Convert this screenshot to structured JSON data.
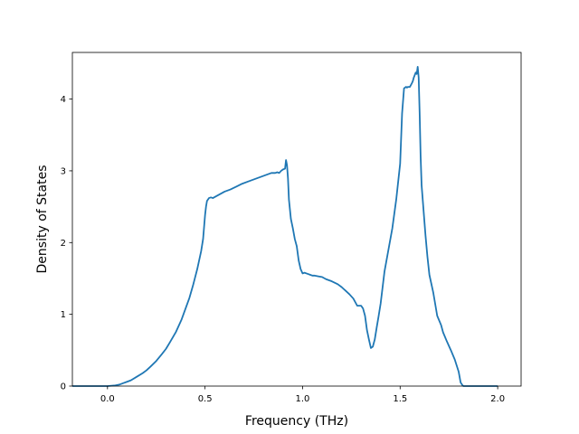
{
  "chart_data": {
    "type": "line",
    "title": "",
    "xlabel": "Frequency (THz)",
    "ylabel": "Density of States",
    "xlim": [
      -0.18,
      2.12
    ],
    "ylim": [
      0,
      4.65
    ],
    "xticks": [
      0.0,
      0.5,
      1.0,
      1.5,
      2.0
    ],
    "xtick_labels": [
      "0.0",
      "0.5",
      "1.0",
      "1.5",
      "2.0"
    ],
    "yticks": [
      0,
      1,
      2,
      3,
      4
    ],
    "ytick_labels": [
      "0",
      "1",
      "2",
      "3",
      "4"
    ],
    "grid": false,
    "legend": false,
    "series": [
      {
        "color": "#1f77b4",
        "x": [
          -0.18,
          0.0,
          0.04,
          0.06,
          0.08,
          0.1,
          0.12,
          0.15,
          0.18,
          0.2,
          0.22,
          0.25,
          0.28,
          0.3,
          0.32,
          0.35,
          0.38,
          0.4,
          0.42,
          0.44,
          0.46,
          0.48,
          0.49,
          0.5,
          0.505,
          0.51,
          0.52,
          0.53,
          0.54,
          0.56,
          0.58,
          0.6,
          0.63,
          0.66,
          0.69,
          0.72,
          0.75,
          0.78,
          0.81,
          0.84,
          0.86,
          0.87,
          0.88,
          0.89,
          0.9,
          0.91,
          0.915,
          0.92,
          0.925,
          0.93,
          0.94,
          0.95,
          0.96,
          0.97,
          0.98,
          0.99,
          1.0,
          1.01,
          1.02,
          1.03,
          1.04,
          1.05,
          1.06,
          1.08,
          1.1,
          1.12,
          1.15,
          1.18,
          1.2,
          1.22,
          1.24,
          1.26,
          1.28,
          1.3,
          1.31,
          1.32,
          1.33,
          1.34,
          1.35,
          1.36,
          1.37,
          1.38,
          1.39,
          1.4,
          1.42,
          1.44,
          1.46,
          1.48,
          1.5,
          1.51,
          1.52,
          1.53,
          1.535,
          1.54,
          1.55,
          1.56,
          1.565,
          1.57,
          1.58,
          1.585,
          1.59,
          1.595,
          1.6,
          1.605,
          1.61,
          1.62,
          1.63,
          1.64,
          1.65,
          1.67,
          1.69,
          1.71,
          1.72,
          1.74,
          1.76,
          1.78,
          1.8,
          1.81,
          1.82,
          1.825,
          1.83,
          1.85,
          1.9,
          2.0
        ],
        "y": [
          0.0,
          0.0,
          0.01,
          0.02,
          0.04,
          0.06,
          0.08,
          0.13,
          0.18,
          0.22,
          0.27,
          0.35,
          0.45,
          0.52,
          0.61,
          0.75,
          0.93,
          1.08,
          1.23,
          1.42,
          1.63,
          1.88,
          2.05,
          2.38,
          2.5,
          2.58,
          2.62,
          2.63,
          2.62,
          2.65,
          2.68,
          2.71,
          2.74,
          2.78,
          2.82,
          2.85,
          2.88,
          2.91,
          2.94,
          2.97,
          2.97,
          2.98,
          2.97,
          3.0,
          3.02,
          3.03,
          3.15,
          3.08,
          2.9,
          2.6,
          2.33,
          2.2,
          2.05,
          1.95,
          1.75,
          1.63,
          1.57,
          1.58,
          1.57,
          1.56,
          1.55,
          1.54,
          1.54,
          1.53,
          1.52,
          1.49,
          1.46,
          1.42,
          1.38,
          1.33,
          1.28,
          1.22,
          1.12,
          1.12,
          1.08,
          0.98,
          0.78,
          0.65,
          0.53,
          0.55,
          0.65,
          0.82,
          0.98,
          1.15,
          1.6,
          1.9,
          2.2,
          2.6,
          3.1,
          3.8,
          4.15,
          4.17,
          4.16,
          4.17,
          4.17,
          4.22,
          4.25,
          4.3,
          4.37,
          4.35,
          4.45,
          4.3,
          3.8,
          3.2,
          2.8,
          2.45,
          2.1,
          1.8,
          1.55,
          1.3,
          0.98,
          0.85,
          0.75,
          0.62,
          0.5,
          0.37,
          0.2,
          0.05,
          0.01,
          0.0,
          0.0,
          0.0,
          0.0,
          0.0
        ]
      }
    ]
  }
}
